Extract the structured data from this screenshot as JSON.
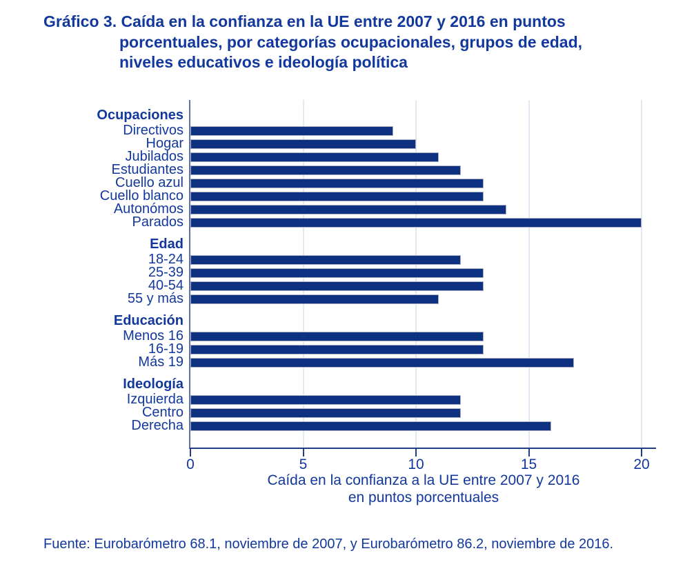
{
  "title": {
    "line1": "Gráfico 3. Caída en la confianza en la UE entre 2007 y 2016 en puntos",
    "line2": "porcentuales, por categorías ocupacionales, grupos de edad,",
    "line3": "niveles educativos e ideología política"
  },
  "chart_data": {
    "type": "bar",
    "orientation": "horizontal",
    "title": "Gráfico 3. Caída en la confianza en la UE entre 2007 y 2016 en puntos porcentuales, por categorías ocupacionales, grupos de edad, niveles educativos e ideología política",
    "xlabel": [
      "Caída en la confianza a la UE entre 2007 y 2016",
      "en puntos porcentuales"
    ],
    "xlim": [
      0,
      20
    ],
    "xticks": [
      0,
      5,
      10,
      15,
      20
    ],
    "grid": "vertical-light",
    "legend": "none",
    "groups": [
      {
        "header": "Ocupaciones",
        "bars": [
          {
            "label": "Directivos",
            "value": 9
          },
          {
            "label": "Hogar",
            "value": 10
          },
          {
            "label": "Jubilados",
            "value": 11
          },
          {
            "label": "Estudiantes",
            "value": 12
          },
          {
            "label": "Cuello azul",
            "value": 13
          },
          {
            "label": "Cuello blanco",
            "value": 13
          },
          {
            "label": "Autonómos",
            "value": 14
          },
          {
            "label": "Parados",
            "value": 20
          }
        ]
      },
      {
        "header": "Edad",
        "bars": [
          {
            "label": "18-24",
            "value": 12
          },
          {
            "label": "25-39",
            "value": 13
          },
          {
            "label": "40-54",
            "value": 13
          },
          {
            "label": "55 y más",
            "value": 11
          }
        ]
      },
      {
        "header": "Educación",
        "bars": [
          {
            "label": "Menos 16",
            "value": 13
          },
          {
            "label": "16-19",
            "value": 13
          },
          {
            "label": "Más 19",
            "value": 17
          }
        ]
      },
      {
        "header": "Ideología",
        "bars": [
          {
            "label": "Izquierda",
            "value": 12
          },
          {
            "label": "Centro",
            "value": 12
          },
          {
            "label": "Derecha",
            "value": 16
          }
        ]
      }
    ]
  },
  "footer": {
    "text": "Fuente: Eurobarómetro 68.1, noviembre de 2007, y Eurobarómetro 86.2, noviembre de 2016."
  },
  "colors": {
    "text": "#13389d",
    "bar_fill": "#0d3080",
    "bar_outline": "#aab0c0",
    "axis_line": "#1f3e86",
    "y_axis_line": "#5e70a5",
    "gridline": "#e2e8f1"
  }
}
